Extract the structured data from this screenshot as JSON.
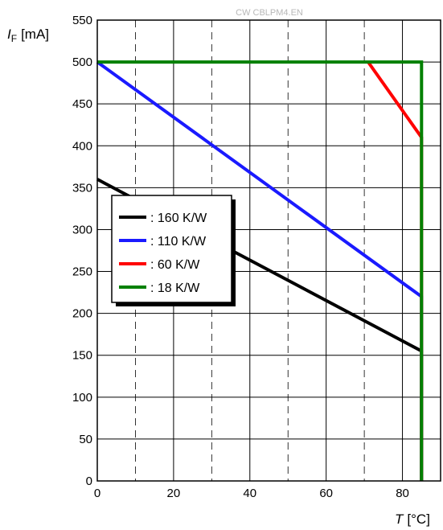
{
  "watermark": "CW CBLPM4.EN",
  "chart_data": {
    "type": "line",
    "y_axis_label": {
      "symbol": "I",
      "subscript": "F",
      "unit": "[mA]"
    },
    "x_axis_label": {
      "symbol": "T",
      "unit": "[°C]"
    },
    "xlim": [
      0,
      90
    ],
    "ylim": [
      0,
      550
    ],
    "x_ticks": [
      0,
      20,
      40,
      60,
      80
    ],
    "y_ticks": [
      0,
      50,
      100,
      150,
      200,
      250,
      300,
      350,
      400,
      450,
      500,
      550
    ],
    "grid": {
      "vertical_dashed_at": [
        10,
        30,
        50,
        70
      ],
      "vertical_solid_at": [
        20,
        40,
        60,
        80
      ],
      "horizontal_solid": true
    },
    "legend_position": "left-middle",
    "series": [
      {
        "name": ": 160 K/W",
        "color": "#000000",
        "points": [
          [
            0,
            360
          ],
          [
            85,
            155
          ],
          [
            85,
            0
          ]
        ]
      },
      {
        "name": ": 110 K/W",
        "color": "#1a1aff",
        "points": [
          [
            0,
            500
          ],
          [
            85,
            220
          ],
          [
            85,
            0
          ]
        ]
      },
      {
        "name": ": 60 K/W",
        "color": "#ff0000",
        "points": [
          [
            71,
            500
          ],
          [
            85,
            410
          ],
          [
            85,
            0
          ]
        ]
      },
      {
        "name": ": 18 K/W",
        "color": "#008000",
        "points": [
          [
            0,
            500
          ],
          [
            85,
            500
          ],
          [
            85,
            0
          ]
        ]
      }
    ]
  }
}
